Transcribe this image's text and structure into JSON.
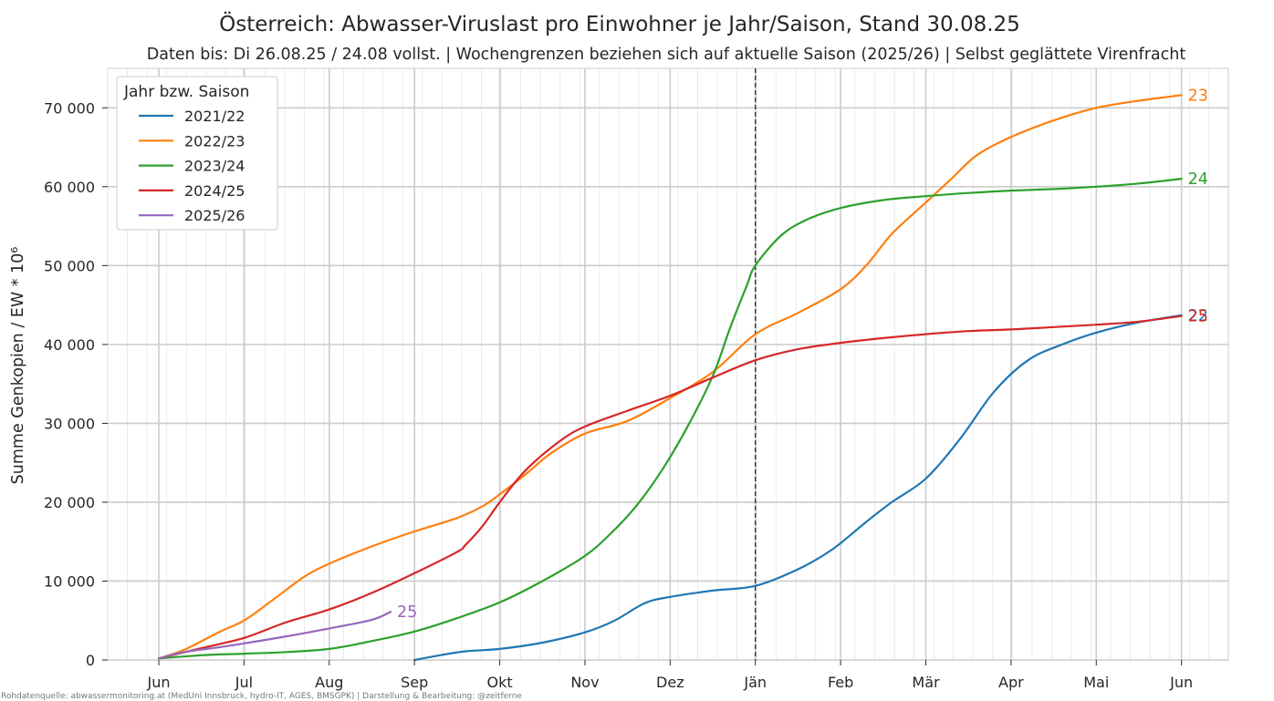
{
  "chart_data": {
    "type": "line",
    "title": "Österreich: Abwasser-Viruslast pro Einwohner je Jahr/Saison, Stand 30.08.25",
    "subtitle": "Daten bis: Di 26.08.25 / 24.08 vollst. | Wochengrenzen beziehen sich auf aktuelle Saison (2025/26) | Selbst geglättete Virenfracht",
    "ylabel": "Summe Genkopien / EW * 10⁶",
    "xlabel": "",
    "x_unit": "Monate ab 1. Juni",
    "x_ticks": [
      "Jun",
      "Jul",
      "Aug",
      "Sep",
      "Okt",
      "Nov",
      "Dez",
      "Jän",
      "Feb",
      "Mär",
      "Apr",
      "Mai",
      "Jun"
    ],
    "y_ticks": [
      "0",
      "10 000",
      "20 000",
      "30 000",
      "40 000",
      "50 000",
      "60 000",
      "70 000"
    ],
    "xlim": [
      -0.6,
      12.55
    ],
    "ylim": [
      0,
      75000
    ],
    "vline_x": 7.0,
    "grid": true,
    "legend": {
      "title": "Jahr bzw. Saison",
      "position": "top-left"
    },
    "footnote": "Rohdatenquelle: abwassermonitoring.at (MedUni Innsbruck, hydro-IT, AGES, BMSGPK) | Darstellung & Bearbeitung: @zeitferne",
    "series": [
      {
        "name": "2021/22",
        "end_label": "22",
        "color": "#1f77b4",
        "points": [
          [
            3.0,
            0
          ],
          [
            3.3,
            600
          ],
          [
            3.6,
            1100
          ],
          [
            4.0,
            1400
          ],
          [
            4.5,
            2200
          ],
          [
            5.0,
            3500
          ],
          [
            5.35,
            5000
          ],
          [
            5.7,
            7200
          ],
          [
            6.0,
            8000
          ],
          [
            6.5,
            8800
          ],
          [
            7.0,
            9400
          ],
          [
            7.5,
            11500
          ],
          [
            7.9,
            14000
          ],
          [
            8.3,
            17500
          ],
          [
            8.6,
            20000
          ],
          [
            9.0,
            23000
          ],
          [
            9.4,
            28000
          ],
          [
            9.8,
            34000
          ],
          [
            10.2,
            38000
          ],
          [
            10.6,
            40000
          ],
          [
            11.0,
            41500
          ],
          [
            11.5,
            42800
          ],
          [
            12.0,
            43700
          ]
        ]
      },
      {
        "name": "2022/23",
        "end_label": "23",
        "color": "#ff7f0e",
        "points": [
          [
            0.0,
            200
          ],
          [
            0.3,
            1300
          ],
          [
            0.7,
            3500
          ],
          [
            1.0,
            5000
          ],
          [
            1.3,
            7300
          ],
          [
            1.7,
            10500
          ],
          [
            2.0,
            12200
          ],
          [
            2.5,
            14400
          ],
          [
            3.0,
            16300
          ],
          [
            3.5,
            18000
          ],
          [
            3.8,
            19500
          ],
          [
            4.0,
            21000
          ],
          [
            4.3,
            23500
          ],
          [
            4.6,
            26200
          ],
          [
            5.0,
            28700
          ],
          [
            5.5,
            30300
          ],
          [
            6.0,
            33200
          ],
          [
            6.5,
            36500
          ],
          [
            7.0,
            41300
          ],
          [
            7.5,
            44000
          ],
          [
            8.0,
            47000
          ],
          [
            8.3,
            50000
          ],
          [
            8.6,
            54000
          ],
          [
            9.0,
            58000
          ],
          [
            9.3,
            61000
          ],
          [
            9.6,
            64000
          ],
          [
            10.0,
            66300
          ],
          [
            10.5,
            68400
          ],
          [
            11.0,
            70000
          ],
          [
            11.5,
            70900
          ],
          [
            12.0,
            71600
          ]
        ]
      },
      {
        "name": "2023/24",
        "end_label": "24",
        "color": "#2ca02c",
        "points": [
          [
            0.0,
            200
          ],
          [
            0.5,
            600
          ],
          [
            1.0,
            800
          ],
          [
            1.5,
            1000
          ],
          [
            2.0,
            1400
          ],
          [
            2.5,
            2400
          ],
          [
            3.0,
            3600
          ],
          [
            3.5,
            5300
          ],
          [
            4.0,
            7300
          ],
          [
            4.5,
            10000
          ],
          [
            5.0,
            13200
          ],
          [
            5.3,
            16000
          ],
          [
            5.6,
            19500
          ],
          [
            5.9,
            24000
          ],
          [
            6.2,
            29500
          ],
          [
            6.5,
            36000
          ],
          [
            6.7,
            42000
          ],
          [
            6.9,
            47500
          ],
          [
            7.0,
            50000
          ],
          [
            7.3,
            53800
          ],
          [
            7.6,
            55800
          ],
          [
            8.0,
            57300
          ],
          [
            8.5,
            58300
          ],
          [
            9.0,
            58800
          ],
          [
            9.5,
            59200
          ],
          [
            10.0,
            59500
          ],
          [
            10.5,
            59700
          ],
          [
            11.0,
            60000
          ],
          [
            11.5,
            60400
          ],
          [
            12.0,
            61000
          ]
        ]
      },
      {
        "name": "2024/25",
        "end_label": "25",
        "color": "#d62728",
        "points": [
          [
            0.0,
            200
          ],
          [
            0.5,
            1500
          ],
          [
            1.0,
            2800
          ],
          [
            1.5,
            4800
          ],
          [
            2.0,
            6400
          ],
          [
            2.5,
            8500
          ],
          [
            3.0,
            11000
          ],
          [
            3.5,
            13700
          ],
          [
            3.6,
            14600
          ],
          [
            3.8,
            17000
          ],
          [
            4.0,
            20000
          ],
          [
            4.3,
            24000
          ],
          [
            4.7,
            27700
          ],
          [
            5.0,
            29600
          ],
          [
            5.5,
            31600
          ],
          [
            6.0,
            33500
          ],
          [
            6.5,
            35800
          ],
          [
            7.0,
            38000
          ],
          [
            7.5,
            39400
          ],
          [
            8.0,
            40200
          ],
          [
            8.5,
            40800
          ],
          [
            9.0,
            41300
          ],
          [
            9.5,
            41700
          ],
          [
            10.0,
            41900
          ],
          [
            10.5,
            42200
          ],
          [
            11.0,
            42500
          ],
          [
            11.5,
            42900
          ],
          [
            12.0,
            43600
          ]
        ]
      },
      {
        "name": "2025/26",
        "end_label": "25",
        "color": "#9467bd",
        "points": [
          [
            0.0,
            200
          ],
          [
            0.3,
            1000
          ],
          [
            0.7,
            1600
          ],
          [
            1.0,
            2100
          ],
          [
            1.5,
            3000
          ],
          [
            2.0,
            4000
          ],
          [
            2.5,
            5100
          ],
          [
            2.72,
            6100
          ]
        ]
      }
    ]
  }
}
